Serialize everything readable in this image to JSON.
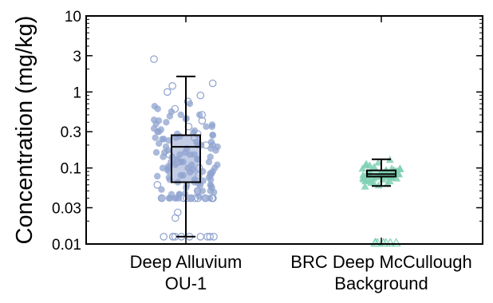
{
  "chart_data": {
    "type": "boxplot",
    "title": "",
    "xlabel": "",
    "ylabel": "Concentration (mg/kg)",
    "yscale": "log",
    "ylim": [
      0.01,
      10
    ],
    "yticks": [
      {
        "value": 10,
        "label": "10"
      },
      {
        "value": 3,
        "label": "3"
      },
      {
        "value": 1,
        "label": "1"
      },
      {
        "value": 0.3,
        "label": "0.3"
      },
      {
        "value": 0.1,
        "label": "0.1"
      },
      {
        "value": 0.03,
        "label": "0.03"
      },
      {
        "value": 0.01,
        "label": "0.01"
      }
    ],
    "grid": false,
    "categories": [
      {
        "line1": "Deep Alluvium",
        "line2": "OU-1"
      },
      {
        "line1": "BRC Deep McCullough",
        "line2": "Background"
      }
    ],
    "series": [
      {
        "marker": "circle",
        "color": "#8fa3cf",
        "box": {
          "whisker_low": 0.0125,
          "q1": 0.065,
          "median": 0.19,
          "q3": 0.27,
          "whisker_high": 1.6
        },
        "detects": [
          0.6,
          0.55,
          0.7,
          0.45,
          0.5,
          0.4,
          0.35,
          0.3,
          0.28,
          0.25,
          0.22,
          0.2,
          0.18,
          0.16,
          0.15,
          0.14,
          0.13,
          0.12,
          0.11,
          0.1,
          0.095,
          0.09,
          0.085,
          0.08,
          0.075,
          0.07,
          0.065,
          0.06,
          0.055,
          0.05,
          0.048,
          0.045,
          0.042,
          0.04,
          0.04,
          0.04,
          0.04,
          0.04,
          0.04,
          0.04,
          0.04,
          0.35,
          0.3,
          0.26,
          0.24,
          0.21,
          0.19,
          0.17,
          0.15,
          0.14,
          0.12,
          0.11,
          0.1,
          0.09,
          0.08,
          0.07,
          0.06,
          0.055,
          0.05,
          0.045,
          0.65,
          0.48,
          0.42,
          0.33,
          0.29,
          0.23,
          0.2,
          0.16,
          0.13,
          0.1,
          0.085,
          0.075,
          0.065,
          0.058,
          0.052,
          0.046,
          0.43,
          0.37,
          0.31,
          0.27,
          0.25,
          0.22,
          0.19,
          0.17,
          0.15,
          0.13,
          0.12,
          0.105,
          0.095,
          0.088,
          0.078,
          0.068,
          0.062,
          0.5,
          0.44,
          0.38,
          0.32,
          0.27,
          0.24,
          0.2,
          0.18,
          0.16,
          0.14,
          0.12,
          0.11,
          0.1,
          0.09,
          0.08,
          0.07,
          0.06,
          0.05,
          0.045,
          0.04
        ],
        "nondetects": [
          2.7,
          1.3,
          1.2,
          1.0,
          0.9,
          0.75,
          0.6,
          0.5,
          0.42,
          0.35,
          0.28,
          0.25,
          0.2,
          0.15,
          0.12,
          0.1,
          0.08,
          0.06,
          0.05,
          0.04,
          0.04,
          0.04,
          0.04,
          0.04,
          0.04,
          0.04,
          0.04,
          0.04,
          0.04,
          0.04,
          0.026,
          0.022,
          0.0125,
          0.0125,
          0.0125,
          0.0125,
          0.0125,
          0.0125,
          0.0125,
          0.0125,
          0.0125,
          0.0125
        ]
      },
      {
        "marker": "triangle",
        "color": "#7fd1b4",
        "box": {
          "whisker_low": 0.058,
          "q1": 0.077,
          "median": 0.083,
          "q3": 0.093,
          "whisker_high": 0.13
        },
        "detects": [
          0.13,
          0.12,
          0.11,
          0.105,
          0.1,
          0.098,
          0.095,
          0.093,
          0.092,
          0.09,
          0.09,
          0.088,
          0.087,
          0.086,
          0.085,
          0.085,
          0.084,
          0.083,
          0.083,
          0.082,
          0.081,
          0.08,
          0.08,
          0.079,
          0.078,
          0.077,
          0.076,
          0.075,
          0.074,
          0.072,
          0.07,
          0.068,
          0.066,
          0.065,
          0.063,
          0.06,
          0.058,
          0.1,
          0.095,
          0.09,
          0.088,
          0.086,
          0.084,
          0.082,
          0.08,
          0.078,
          0.076,
          0.074,
          0.072,
          0.07,
          0.068,
          0.115,
          0.11,
          0.1,
          0.092,
          0.085
        ],
        "nondetects": [
          0.0105,
          0.0105,
          0.0105,
          0.0105,
          0.0105,
          0.0105,
          0.0105
        ]
      }
    ]
  }
}
